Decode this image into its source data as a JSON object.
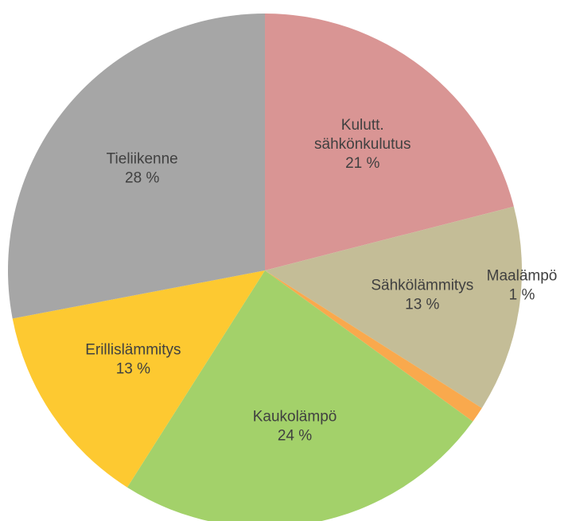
{
  "chart_data": {
    "type": "pie",
    "categories": [
      "Kulutt. sähkönkulutus",
      "Sähkölämmitys",
      "Maalämpö",
      "Kaukolämpö",
      "Erillislämmitys",
      "Tieliikenne"
    ],
    "values": [
      21,
      13,
      1,
      24,
      13,
      28
    ],
    "value_labels": [
      "21 %",
      "13 %",
      "1 %",
      "24 %",
      "13 %",
      "28 %"
    ],
    "colors": [
      "#d99594",
      "#c4bd97",
      "#f9a94d",
      "#a3d16a",
      "#fdc931",
      "#a6a6a6"
    ]
  }
}
